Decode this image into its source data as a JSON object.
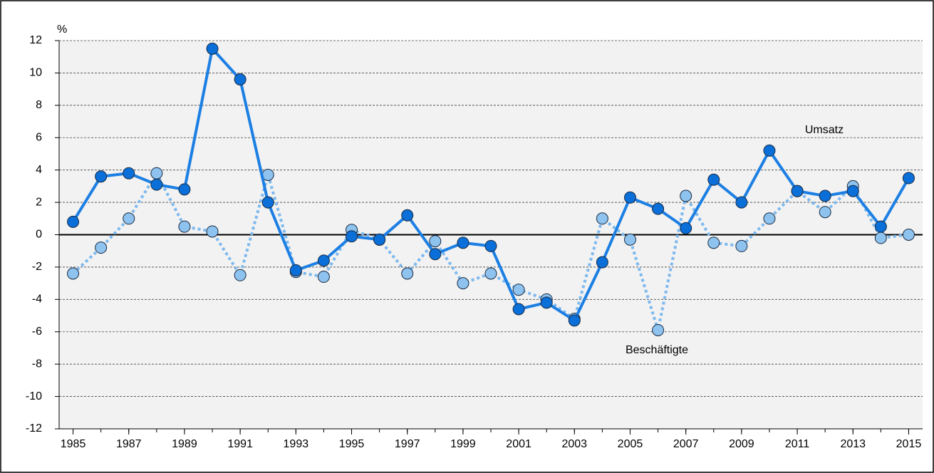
{
  "chart_data": {
    "type": "line",
    "y_unit_label": "%",
    "x": [
      1985,
      1986,
      1987,
      1988,
      1989,
      1990,
      1991,
      1992,
      1993,
      1994,
      1995,
      1996,
      1997,
      1998,
      1999,
      2000,
      2001,
      2002,
      2003,
      2004,
      2005,
      2006,
      2007,
      2008,
      2009,
      2010,
      2011,
      2012,
      2013,
      2014,
      2015
    ],
    "series": [
      {
        "name": "Beschäftigte",
        "color": "#7db9ef",
        "marker_color": "#8ec3f0",
        "line_style": "dotted",
        "values": [
          -2.4,
          -0.8,
          1.0,
          3.8,
          0.5,
          0.2,
          -2.5,
          3.7,
          -2.3,
          -2.6,
          0.3,
          -0.3,
          -2.4,
          -0.4,
          -3.0,
          -2.4,
          -3.4,
          -4.0,
          -5.2,
          1.0,
          -0.3,
          -5.9,
          2.4,
          -0.5,
          -0.7,
          1.0,
          2.7,
          1.4,
          3.0,
          -0.2,
          0.0
        ]
      },
      {
        "name": "Umsatz",
        "color": "#1c7fe3",
        "marker_color": "#0a6fd8",
        "line_style": "solid",
        "values": [
          0.8,
          3.6,
          3.8,
          3.1,
          2.8,
          11.5,
          9.6,
          2.0,
          -2.2,
          -1.6,
          -0.1,
          -0.3,
          1.2,
          -1.2,
          -0.5,
          -0.7,
          -4.6,
          -4.2,
          -5.3,
          -1.7,
          2.3,
          1.6,
          0.4,
          3.4,
          2.0,
          5.2,
          2.7,
          2.4,
          2.7,
          0.5,
          3.5
        ]
      }
    ],
    "xlim": [
      1984.5,
      2015.5
    ],
    "xticks": [
      1985,
      1987,
      1989,
      1991,
      1993,
      1995,
      1997,
      1999,
      2001,
      2003,
      2005,
      2007,
      2009,
      2011,
      2013,
      2015
    ],
    "ylim": [
      -12,
      12
    ],
    "yticks": [
      -12,
      -10,
      -8,
      -6,
      -4,
      -2,
      0,
      2,
      4,
      6,
      8,
      10,
      12
    ],
    "grid": true
  }
}
